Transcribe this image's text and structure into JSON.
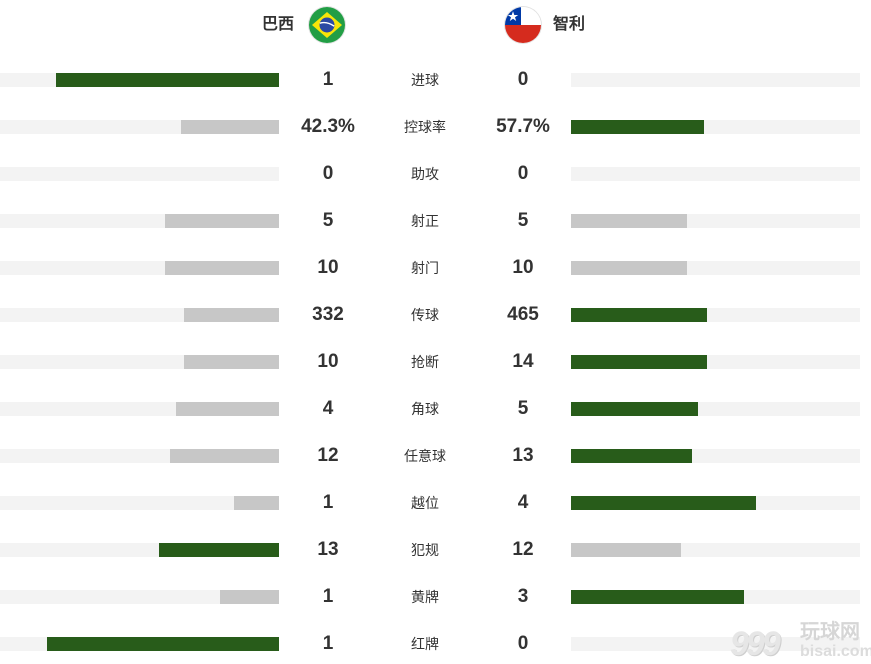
{
  "home": {
    "name": "巴西",
    "flag_icon": "brazil-flag-icon"
  },
  "away": {
    "name": "智利",
    "flag_icon": "chile-flag-icon"
  },
  "colors": {
    "leading": "#285c1a",
    "trailing": "#c7c7c7",
    "track": "#f3f3f3"
  },
  "stats": [
    {
      "label": "进球",
      "home": "1",
      "away": "0",
      "home_share": 0.8,
      "away_share": 0,
      "home_leads": true
    },
    {
      "label": "控球率",
      "home": "42.3%",
      "away": "57.7%",
      "home_share": 0.35,
      "away_share": 0.46,
      "home_leads": false
    },
    {
      "label": "助攻",
      "home": "0",
      "away": "0",
      "home_share": 0,
      "away_share": 0,
      "home_leads": null
    },
    {
      "label": "射正",
      "home": "5",
      "away": "5",
      "home_share": 0.41,
      "away_share": 0.4,
      "home_leads": null
    },
    {
      "label": "射门",
      "home": "10",
      "away": "10",
      "home_share": 0.41,
      "away_share": 0.4,
      "home_leads": null
    },
    {
      "label": "传球",
      "home": "332",
      "away": "465",
      "home_share": 0.34,
      "away_share": 0.47,
      "home_leads": false
    },
    {
      "label": "抢断",
      "home": "10",
      "away": "14",
      "home_share": 0.34,
      "away_share": 0.47,
      "home_leads": false
    },
    {
      "label": "角球",
      "home": "4",
      "away": "5",
      "home_share": 0.37,
      "away_share": 0.44,
      "home_leads": false
    },
    {
      "label": "任意球",
      "home": "12",
      "away": "13",
      "home_share": 0.39,
      "away_share": 0.42,
      "home_leads": false
    },
    {
      "label": "越位",
      "home": "1",
      "away": "4",
      "home_share": 0.16,
      "away_share": 0.64,
      "home_leads": false
    },
    {
      "label": "犯规",
      "home": "13",
      "away": "12",
      "home_share": 0.43,
      "away_share": 0.38,
      "home_leads": true
    },
    {
      "label": "黄牌",
      "home": "1",
      "away": "3",
      "home_share": 0.21,
      "away_share": 0.6,
      "home_leads": false
    },
    {
      "label": "红牌",
      "home": "1",
      "away": "0",
      "home_share": 0.83,
      "away_share": 0,
      "home_leads": true
    }
  ],
  "watermark": {
    "digits": "999",
    "cn": "玩球网",
    "en": "bisai.com"
  }
}
